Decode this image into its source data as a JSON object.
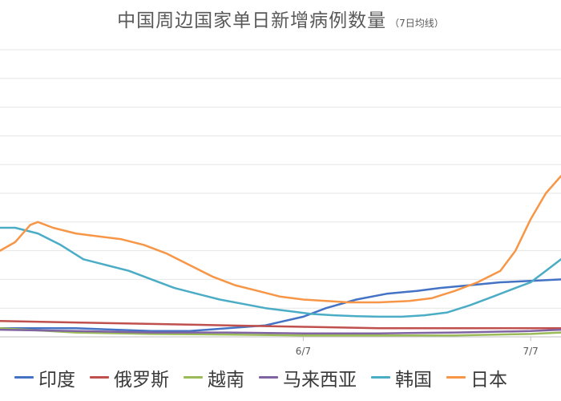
{
  "chart_data": {
    "type": "line",
    "title": "中国周边国家单日新增病例数量",
    "subtitle": "（7日均线）",
    "xlabel": "",
    "ylabel": "",
    "x_ticks": [
      {
        "label": "6/7",
        "x": 40
      },
      {
        "label": "7/7",
        "x": 70
      }
    ],
    "xlim": [
      0,
      74
    ],
    "ylim": [
      0,
      10
    ],
    "grid": true,
    "legend_position": "bottom",
    "series": [
      {
        "name": "印度",
        "color": "#4472C4",
        "points": [
          [
            0,
            0.3
          ],
          [
            10,
            0.3
          ],
          [
            20,
            0.2
          ],
          [
            25,
            0.2
          ],
          [
            30,
            0.3
          ],
          [
            35,
            0.4
          ],
          [
            40,
            0.7
          ],
          [
            43,
            1.0
          ],
          [
            47,
            1.3
          ],
          [
            51,
            1.5
          ],
          [
            55,
            1.6
          ],
          [
            58,
            1.7
          ],
          [
            62,
            1.8
          ],
          [
            66,
            1.9
          ],
          [
            70,
            1.95
          ],
          [
            74,
            2.0
          ]
        ]
      },
      {
        "name": "俄罗斯",
        "color": "#C0504D",
        "points": [
          [
            0,
            0.55
          ],
          [
            10,
            0.5
          ],
          [
            20,
            0.45
          ],
          [
            30,
            0.4
          ],
          [
            40,
            0.35
          ],
          [
            50,
            0.3
          ],
          [
            60,
            0.3
          ],
          [
            70,
            0.3
          ],
          [
            74,
            0.3
          ]
        ]
      },
      {
        "name": "越南",
        "color": "#9BBB59",
        "points": [
          [
            0,
            0.3
          ],
          [
            10,
            0.15
          ],
          [
            20,
            0.1
          ],
          [
            30,
            0.08
          ],
          [
            40,
            0.05
          ],
          [
            50,
            0.05
          ],
          [
            60,
            0.05
          ],
          [
            70,
            0.1
          ],
          [
            74,
            0.15
          ]
        ]
      },
      {
        "name": "马来西亚",
        "color": "#8064A2",
        "points": [
          [
            0,
            0.25
          ],
          [
            10,
            0.2
          ],
          [
            20,
            0.15
          ],
          [
            30,
            0.15
          ],
          [
            40,
            0.12
          ],
          [
            50,
            0.12
          ],
          [
            60,
            0.15
          ],
          [
            70,
            0.2
          ],
          [
            74,
            0.25
          ]
        ]
      },
      {
        "name": "韩国",
        "color": "#4BACC6",
        "points": [
          [
            0,
            3.8
          ],
          [
            2,
            3.8
          ],
          [
            5,
            3.6
          ],
          [
            8,
            3.2
          ],
          [
            11,
            2.7
          ],
          [
            14,
            2.5
          ],
          [
            17,
            2.3
          ],
          [
            20,
            2.0
          ],
          [
            23,
            1.7
          ],
          [
            26,
            1.5
          ],
          [
            29,
            1.3
          ],
          [
            32,
            1.15
          ],
          [
            35,
            1.0
          ],
          [
            38,
            0.9
          ],
          [
            41,
            0.8
          ],
          [
            44,
            0.75
          ],
          [
            47,
            0.72
          ],
          [
            50,
            0.7
          ],
          [
            53,
            0.7
          ],
          [
            56,
            0.75
          ],
          [
            59,
            0.85
          ],
          [
            62,
            1.1
          ],
          [
            65,
            1.4
          ],
          [
            68,
            1.7
          ],
          [
            70,
            1.9
          ],
          [
            72,
            2.3
          ],
          [
            74,
            2.7
          ]
        ]
      },
      {
        "name": "日本",
        "color": "#F79646",
        "points": [
          [
            0,
            3.0
          ],
          [
            2,
            3.3
          ],
          [
            4,
            3.9
          ],
          [
            5,
            4.0
          ],
          [
            7,
            3.8
          ],
          [
            10,
            3.6
          ],
          [
            13,
            3.5
          ],
          [
            16,
            3.4
          ],
          [
            19,
            3.2
          ],
          [
            22,
            2.9
          ],
          [
            25,
            2.5
          ],
          [
            28,
            2.1
          ],
          [
            31,
            1.8
          ],
          [
            34,
            1.6
          ],
          [
            37,
            1.4
          ],
          [
            40,
            1.3
          ],
          [
            43,
            1.25
          ],
          [
            46,
            1.2
          ],
          [
            50,
            1.2
          ],
          [
            54,
            1.25
          ],
          [
            57,
            1.35
          ],
          [
            60,
            1.6
          ],
          [
            63,
            1.9
          ],
          [
            66,
            2.3
          ],
          [
            68,
            3.0
          ],
          [
            70,
            4.1
          ],
          [
            72,
            5.0
          ],
          [
            74,
            5.6
          ]
        ]
      }
    ]
  }
}
